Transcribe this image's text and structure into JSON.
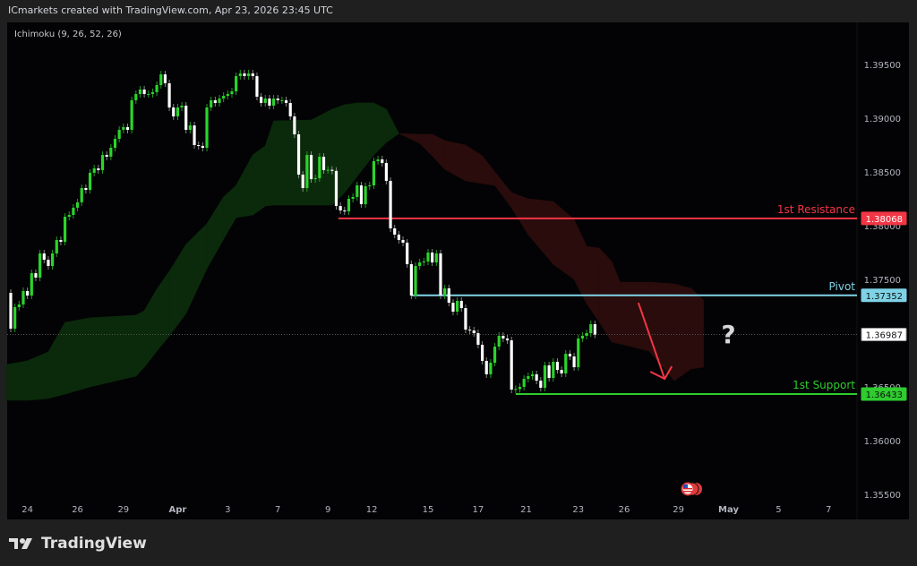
{
  "header": {
    "text": "ICmarkets created with TradingView.com, Apr 23, 2026 23:45 UTC"
  },
  "logo": {
    "text": "TradingView"
  },
  "chart_data": {
    "type": "candlestick",
    "indicator_label": "Ichimoku (9, 26, 52, 26)",
    "ylim": [
      1.3535,
      1.3985
    ],
    "colors": {
      "up": "#2bd42b",
      "down": "#ffffff",
      "cloud_bull": "#0b2a0b",
      "cloud_bear": "#2a0c0c",
      "resistance": "#f23645",
      "pivot": "#7fd3e6",
      "support": "#2ecc2e",
      "arrow": "#f23645"
    },
    "y_ticks": [
      "1.39500",
      "1.39000",
      "1.38500",
      "1.38000",
      "1.37500",
      "1.36500",
      "1.36000",
      "1.35500"
    ],
    "x_ticks": [
      {
        "label": "24",
        "i": 4
      },
      {
        "label": "26",
        "i": 16
      },
      {
        "label": "29",
        "i": 27
      },
      {
        "label": "Apr",
        "i": 40
      },
      {
        "label": "3",
        "i": 52
      },
      {
        "label": "7",
        "i": 64
      },
      {
        "label": "9",
        "i": 76
      },
      {
        "label": "12",
        "i": 86.5
      },
      {
        "label": "15",
        "i": 100
      },
      {
        "label": "17",
        "i": 112
      },
      {
        "label": "21",
        "i": 123.5
      },
      {
        "label": "23",
        "i": 136
      },
      {
        "label": "26",
        "i": 147
      },
      {
        "label": "29",
        "i": 160
      },
      {
        "label": "May",
        "i": 172
      },
      {
        "label": "5",
        "i": 184
      },
      {
        "label": "7",
        "i": 196
      }
    ],
    "first_open": 1.37375,
    "closes": [
      1.37042,
      1.37242,
      1.37267,
      1.37392,
      1.3735,
      1.37558,
      1.37517,
      1.37742,
      1.37683,
      1.37625,
      1.37742,
      1.37867,
      1.3785,
      1.38083,
      1.381,
      1.38167,
      1.38217,
      1.3835,
      1.38333,
      1.38492,
      1.38533,
      1.38517,
      1.38658,
      1.38642,
      1.38725,
      1.38808,
      1.38892,
      1.38917,
      1.38892,
      1.39167,
      1.39225,
      1.39267,
      1.39225,
      1.39225,
      1.39242,
      1.39308,
      1.39408,
      1.39325,
      1.391,
      1.39017,
      1.391,
      1.39117,
      1.38892,
      1.38933,
      1.3875,
      1.38742,
      1.38725,
      1.391,
      1.39167,
      1.39142,
      1.39183,
      1.39208,
      1.39225,
      1.3925,
      1.39392,
      1.39417,
      1.39392,
      1.39417,
      1.39392,
      1.392,
      1.39142,
      1.39183,
      1.39117,
      1.39183,
      1.39167,
      1.39167,
      1.39142,
      1.39017,
      1.3885,
      1.38475,
      1.3835,
      1.38658,
      1.38433,
      1.38442,
      1.38642,
      1.38517,
      1.3852,
      1.3851,
      1.38183,
      1.38142,
      1.38133,
      1.3825,
      1.38267,
      1.38375,
      1.382,
      1.38367,
      1.38375,
      1.386,
      1.38617,
      1.38583,
      1.38417,
      1.37975,
      1.37917,
      1.37867,
      1.37842,
      1.37642,
      1.3735,
      1.37625,
      1.37658,
      1.37667,
      1.3775,
      1.37658,
      1.37742,
      1.3735,
      1.37417,
      1.37283,
      1.372,
      1.373,
      1.37233,
      1.37033,
      1.37025,
      1.37,
      1.36892,
      1.36742,
      1.36617,
      1.36725,
      1.36875,
      1.36975,
      1.3695,
      1.36933,
      1.36475,
      1.3648,
      1.365,
      1.36575,
      1.366,
      1.36617,
      1.36558,
      1.36492,
      1.367,
      1.36583,
      1.36733,
      1.36658,
      1.36625,
      1.36808,
      1.36783,
      1.36683,
      1.3695,
      1.36975,
      1.37,
      1.37083,
      1.36987
    ],
    "cloud": [
      [
        -1,
        1.36708,
        1.36375
      ],
      [
        4,
        1.36742,
        1.36375
      ],
      [
        9,
        1.36825,
        1.36392
      ],
      [
        13,
        1.371,
        1.36433
      ],
      [
        19,
        1.37142,
        1.365
      ],
      [
        30,
        1.37167,
        1.366
      ],
      [
        32,
        1.37208,
        1.36683
      ],
      [
        35,
        1.37408,
        1.36833
      ],
      [
        38,
        1.37575,
        1.36975
      ],
      [
        42,
        1.37825,
        1.37183
      ],
      [
        47,
        1.38017,
        1.376
      ],
      [
        51,
        1.38267,
        1.37875
      ],
      [
        54,
        1.38375,
        1.38075
      ],
      [
        58,
        1.38658,
        1.381
      ],
      [
        61,
        1.38742,
        1.38183
      ],
      [
        63,
        1.38975,
        1.38192
      ],
      [
        72,
        1.38983,
        1.38192
      ],
      [
        77,
        1.39083,
        1.38192
      ],
      [
        80,
        1.39125,
        1.38308
      ],
      [
        83,
        1.39142,
        1.38458
      ],
      [
        87,
        1.39142,
        1.38658
      ],
      [
        90,
        1.39083,
        1.38775
      ],
      [
        93,
        1.38858,
        1.38858
      ],
      [
        98,
        1.38767,
        1.3885
      ],
      [
        101,
        1.3865,
        1.3885
      ],
      [
        104,
        1.38525,
        1.38792
      ],
      [
        109,
        1.38417,
        1.3875
      ],
      [
        113,
        1.38392,
        1.3865
      ],
      [
        116,
        1.38375,
        1.385
      ],
      [
        120,
        1.38167,
        1.38308
      ],
      [
        124,
        1.37917,
        1.3825
      ],
      [
        130,
        1.37642,
        1.38225
      ],
      [
        135,
        1.375,
        1.38058
      ],
      [
        138,
        1.37275,
        1.37808
      ],
      [
        141,
        1.37108,
        1.37792
      ],
      [
        144,
        1.36917,
        1.37667
      ],
      [
        146,
        1.369,
        1.37475
      ],
      [
        153,
        1.36833,
        1.37475
      ],
      [
        159,
        1.36558,
        1.37458
      ],
      [
        163,
        1.36667,
        1.37417
      ],
      [
        166,
        1.36683,
        1.37308
      ]
    ],
    "levels": [
      {
        "name": "resistance",
        "label": "1st Resistance",
        "price": 1.38068,
        "price_text": "1.38068",
        "from_i": 78.5
      },
      {
        "name": "pivot",
        "label": "Pivot",
        "price": 1.37352,
        "price_text": "1.37352",
        "from_i": 96
      },
      {
        "name": "support",
        "label": "1st Support",
        "price": 1.36433,
        "price_text": "1.36433",
        "from_i": 121
      }
    ],
    "last_price": 1.36987,
    "last_price_text": "1.36987",
    "annotations": {
      "arrow": {
        "from": [
          150.4,
          1.37283
        ],
        "to": [
          156.7,
          1.36575
        ]
      },
      "question": {
        "text": "?",
        "at": [
          172,
          1.3699
        ]
      }
    },
    "event_icon": "us-flag-event-icon"
  }
}
